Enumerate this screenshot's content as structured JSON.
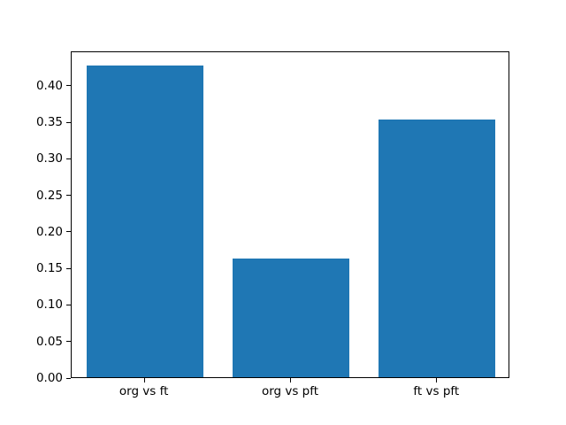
{
  "figure": {
    "background": "#ffffff"
  },
  "chart_data": {
    "type": "bar",
    "title": "",
    "xlabel": "",
    "ylabel": "",
    "categories": [
      "org vs ft",
      "org vs pft",
      "ft vs pft"
    ],
    "values": [
      0.426,
      0.162,
      0.352
    ],
    "bar_color": "#1f77b4",
    "bar_width": 0.8,
    "xlim": [
      -0.5,
      2.5
    ],
    "ylim": [
      0,
      0.447
    ],
    "ytick_values": [
      0.0,
      0.05,
      0.1,
      0.15,
      0.2,
      0.25,
      0.3,
      0.35,
      0.4
    ],
    "ytick_labels": [
      "0.00",
      "0.05",
      "0.10",
      "0.15",
      "0.20",
      "0.25",
      "0.30",
      "0.35",
      "0.40"
    ],
    "grid": false,
    "legend_position": "none",
    "spine_color": "#000000",
    "tick_label_color": "#000000"
  }
}
